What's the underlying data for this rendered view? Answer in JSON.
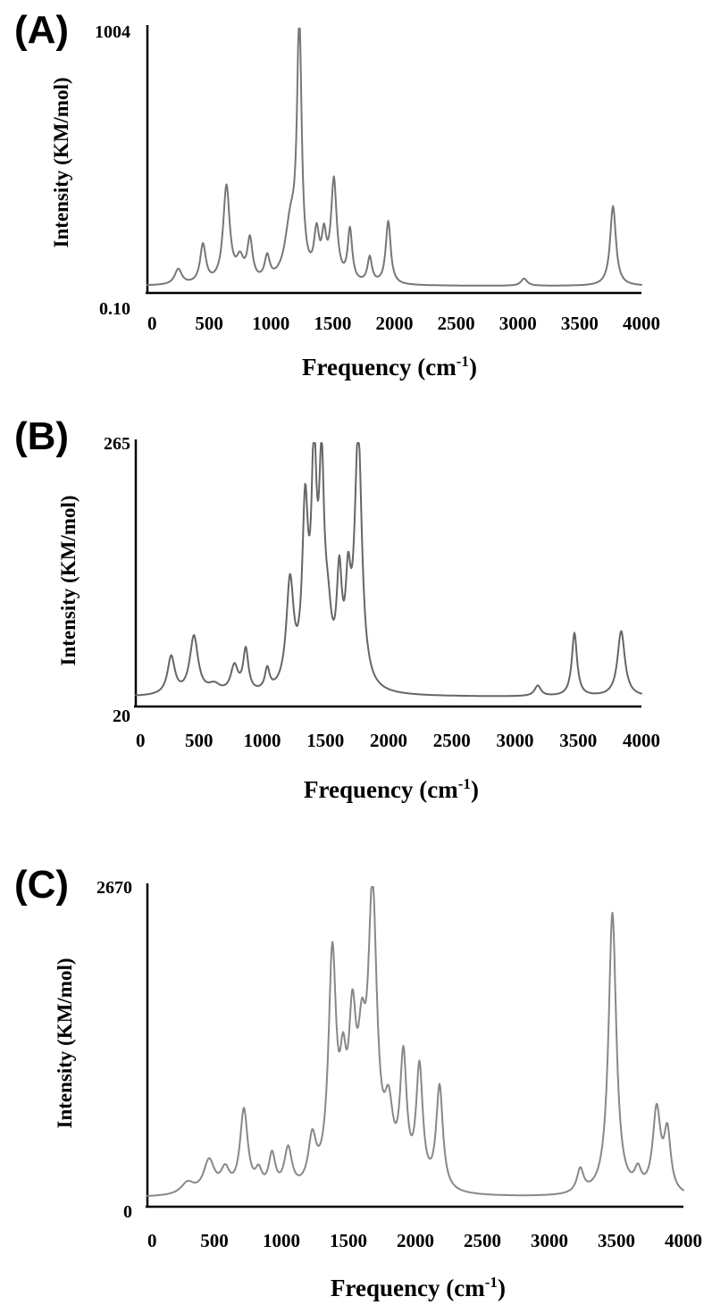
{
  "chart_data": [
    {
      "type": "line",
      "panel_label": "(A)",
      "xlabel": "Frequency (cm",
      "xlabel_sup": "-1",
      "xlabel_end": ")",
      "ylabel": "Intensity (KM/mol)",
      "xlim": [
        0,
        4000
      ],
      "ylim": [
        0.1,
        1004
      ],
      "ytick_labels": [
        "1004",
        "0.10"
      ],
      "xtick_labels": [
        "0",
        "500",
        "1000",
        "1500",
        "2000",
        "2500",
        "3000",
        "3500",
        "4000"
      ],
      "color": "#777777",
      "grid": false,
      "baseline": 6,
      "series": [
        {
          "peaks": [
            {
              "x": 250,
              "y": 60,
              "w": 35
            },
            {
              "x": 450,
              "y": 150,
              "w": 28
            },
            {
              "x": 640,
              "y": 375,
              "w": 32
            },
            {
              "x": 750,
              "y": 80,
              "w": 35
            },
            {
              "x": 830,
              "y": 160,
              "w": 26
            },
            {
              "x": 970,
              "y": 90,
              "w": 25
            },
            {
              "x": 1160,
              "y": 220,
              "w": 55
            },
            {
              "x": 1230,
              "y": 985,
              "w": 22
            },
            {
              "x": 1370,
              "y": 170,
              "w": 25
            },
            {
              "x": 1430,
              "y": 150,
              "w": 22
            },
            {
              "x": 1510,
              "y": 390,
              "w": 28
            },
            {
              "x": 1640,
              "y": 200,
              "w": 22
            },
            {
              "x": 1800,
              "y": 100,
              "w": 22
            },
            {
              "x": 1950,
              "y": 245,
              "w": 24
            },
            {
              "x": 3050,
              "y": 28,
              "w": 30
            },
            {
              "x": 3770,
              "y": 310,
              "w": 28
            }
          ]
        }
      ]
    },
    {
      "type": "line",
      "panel_label": "(B)",
      "xlabel": "Frequency (cm",
      "xlabel_sup": "-1",
      "xlabel_end": ")",
      "ylabel": "Intensity (KM/mol)",
      "xlim": [
        0,
        4000
      ],
      "ylim": [
        20,
        265
      ],
      "ytick_labels": [
        "265",
        "20"
      ],
      "xtick_labels": [
        "0",
        "500",
        "1000",
        "1500",
        "2000",
        "2500",
        "3000",
        "3500",
        "4000"
      ],
      "color": "#666666",
      "grid": false,
      "baseline": 24,
      "series": [
        {
          "peaks": [
            {
              "x": 280,
              "y": 36,
              "w": 35
            },
            {
              "x": 460,
              "y": 55,
              "w": 40
            },
            {
              "x": 620,
              "y": 8,
              "w": 60
            },
            {
              "x": 780,
              "y": 25,
              "w": 35
            },
            {
              "x": 870,
              "y": 40,
              "w": 25
            },
            {
              "x": 1040,
              "y": 20,
              "w": 22
            },
            {
              "x": 1220,
              "y": 100,
              "w": 35
            },
            {
              "x": 1340,
              "y": 160,
              "w": 28
            },
            {
              "x": 1410,
              "y": 200,
              "w": 25
            },
            {
              "x": 1470,
              "y": 185,
              "w": 25
            },
            {
              "x": 1520,
              "y": 50,
              "w": 35
            },
            {
              "x": 1610,
              "y": 95,
              "w": 25
            },
            {
              "x": 1680,
              "y": 80,
              "w": 25
            },
            {
              "x": 1760,
              "y": 240,
              "w": 35
            },
            {
              "x": 3180,
              "y": 10,
              "w": 30
            },
            {
              "x": 3470,
              "y": 60,
              "w": 25
            },
            {
              "x": 3840,
              "y": 62,
              "w": 35
            }
          ]
        }
      ]
    },
    {
      "type": "line",
      "panel_label": "(C)",
      "xlabel": "Frequency (cm",
      "xlabel_sup": "-1",
      "xlabel_end": ")",
      "ylabel": "Intensity (KM/mol)",
      "xlim": [
        0,
        4000
      ],
      "ylim": [
        0,
        2670
      ],
      "ytick_labels": [
        "2670",
        "0"
      ],
      "xtick_labels": [
        "0",
        "500",
        "1000",
        "1500",
        "2000",
        "2500",
        "3000",
        "3500",
        "4000"
      ],
      "color": "#888888",
      "grid": false,
      "baseline": 30,
      "series": [
        {
          "peaks": [
            {
              "x": 300,
              "y": 100,
              "w": 60
            },
            {
              "x": 460,
              "y": 280,
              "w": 50
            },
            {
              "x": 580,
              "y": 180,
              "w": 40
            },
            {
              "x": 720,
              "y": 700,
              "w": 35
            },
            {
              "x": 830,
              "y": 150,
              "w": 30
            },
            {
              "x": 930,
              "y": 300,
              "w": 30
            },
            {
              "x": 1050,
              "y": 350,
              "w": 35
            },
            {
              "x": 1230,
              "y": 400,
              "w": 35
            },
            {
              "x": 1380,
              "y": 1920,
              "w": 35
            },
            {
              "x": 1460,
              "y": 700,
              "w": 30
            },
            {
              "x": 1530,
              "y": 1200,
              "w": 35
            },
            {
              "x": 1600,
              "y": 850,
              "w": 35
            },
            {
              "x": 1680,
              "y": 2400,
              "w": 40
            },
            {
              "x": 1800,
              "y": 550,
              "w": 40
            },
            {
              "x": 1910,
              "y": 1050,
              "w": 30
            },
            {
              "x": 2030,
              "y": 1000,
              "w": 30
            },
            {
              "x": 2180,
              "y": 880,
              "w": 30
            },
            {
              "x": 3230,
              "y": 200,
              "w": 30
            },
            {
              "x": 3470,
              "y": 2400,
              "w": 35
            },
            {
              "x": 3660,
              "y": 160,
              "w": 30
            },
            {
              "x": 3800,
              "y": 700,
              "w": 35
            },
            {
              "x": 3880,
              "y": 500,
              "w": 30
            }
          ]
        }
      ]
    }
  ]
}
